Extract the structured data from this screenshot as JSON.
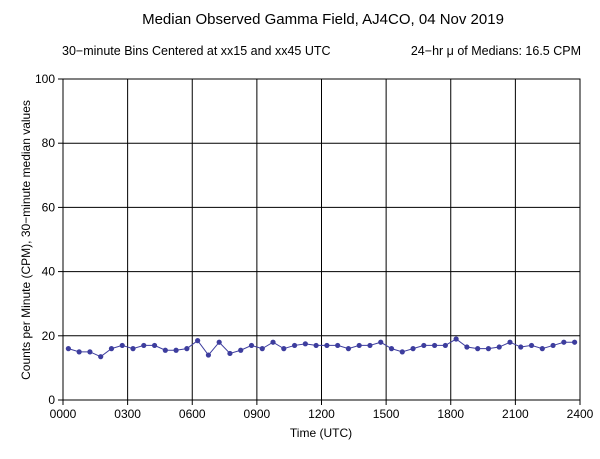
{
  "chart_data": {
    "type": "line",
    "title": "Median Observed Gamma Field, AJ4CO, 04 Nov 2019",
    "subtitle_left": "30−minute Bins Centered at xx15 and xx45 UTC",
    "subtitle_right": "24−hr μ of Medians: 16.5 CPM",
    "xlabel": "Time (UTC)",
    "ylabel": "Counts per Minute (CPM), 30−minute median values",
    "xlim": [
      0,
      24
    ],
    "ylim": [
      0,
      100
    ],
    "x_ticks": [
      0,
      3,
      6,
      9,
      12,
      15,
      18,
      21,
      24
    ],
    "x_tick_labels": [
      "0000",
      "0300",
      "0600",
      "0900",
      "1200",
      "1500",
      "1800",
      "2100",
      "2400"
    ],
    "y_ticks": [
      0,
      20,
      40,
      60,
      80,
      100
    ],
    "y_tick_labels": [
      "0",
      "20",
      "40",
      "60",
      "80",
      "100"
    ],
    "grid": true,
    "series": [
      {
        "color": "#3d3d9e",
        "x": [
          0.25,
          0.75,
          1.25,
          1.75,
          2.25,
          2.75,
          3.25,
          3.75,
          4.25,
          4.75,
          5.25,
          5.75,
          6.25,
          6.75,
          7.25,
          7.75,
          8.25,
          8.75,
          9.25,
          9.75,
          10.25,
          10.75,
          11.25,
          11.75,
          12.25,
          12.75,
          13.25,
          13.75,
          14.25,
          14.75,
          15.25,
          15.75,
          16.25,
          16.75,
          17.25,
          17.75,
          18.25,
          18.75,
          19.25,
          19.75,
          20.25,
          20.75,
          21.25,
          21.75,
          22.25,
          22.75,
          23.25,
          23.75
        ],
        "y": [
          16,
          15,
          15,
          13.5,
          16,
          17,
          16,
          17,
          17,
          15.5,
          15.5,
          16,
          18.5,
          14,
          18,
          14.5,
          15.5,
          17,
          16,
          18,
          16,
          17,
          17.5,
          17,
          17,
          17,
          16,
          17,
          17,
          18,
          16,
          15,
          16,
          17,
          17,
          17,
          19,
          16.5,
          16,
          16,
          16.5,
          18,
          16.5,
          17,
          16,
          17,
          18,
          18
        ]
      }
    ]
  }
}
